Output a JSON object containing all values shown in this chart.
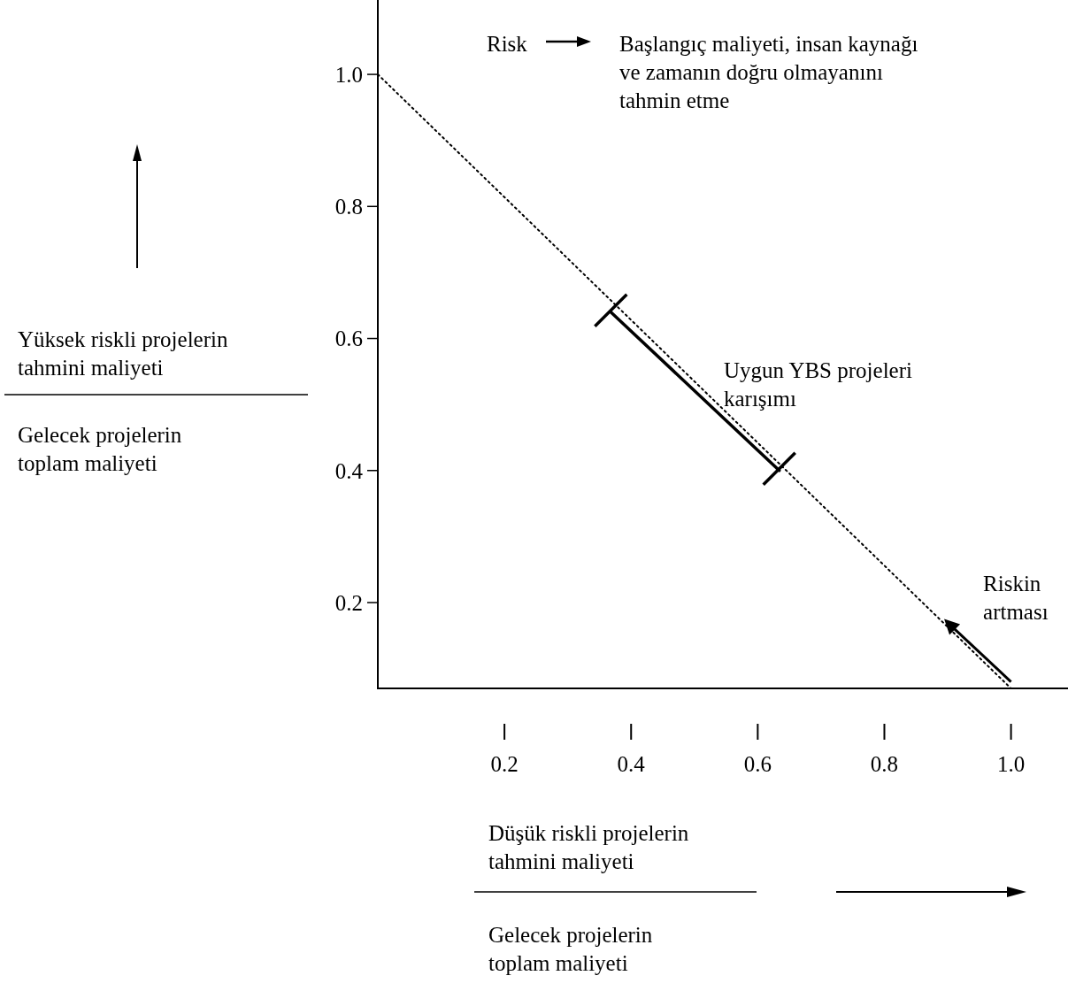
{
  "chart_data": {
    "type": "line",
    "xlabel": "Düşük riskli projelerin tahmini maliyeti",
    "ylabel": "Yüksek riskli projelerin tahmini maliyeti",
    "xlim": [
      0,
      1.09
    ],
    "ylim": [
      0.07,
      1.11
    ],
    "xticks": [
      0.2,
      0.4,
      0.6,
      0.8,
      {
        "value": 1,
        "label": "1.0"
      }
    ],
    "yticks": [
      0.2,
      0.4,
      0.6,
      0.8,
      {
        "value": 1,
        "label": "1.0"
      }
    ],
    "series": [
      {
        "color": "#000000",
        "line_style": "dotted",
        "x": [
          0,
          1.0
        ],
        "values": [
          1.0,
          0.07
        ]
      },
      {
        "color": "#000000",
        "line_style": "solid",
        "marker": "cross",
        "x": [
          0.368,
          0.634
        ],
        "values": [
          0.64,
          0.4
        ]
      }
    ],
    "annotations": [
      "Risk",
      "Başlangıç maliyeti, insan kaynağı ve zamanın doğru olmayanını tahmin etme",
      "Uygun YBS projeleri karışımı",
      "Gelecek projelerin toplam maliyeti",
      "Gelecek projelerin toplam maliyeti",
      {
        "text": "Riskin artması",
        "x": 0.9,
        "y": 0.17
      }
    ]
  }
}
